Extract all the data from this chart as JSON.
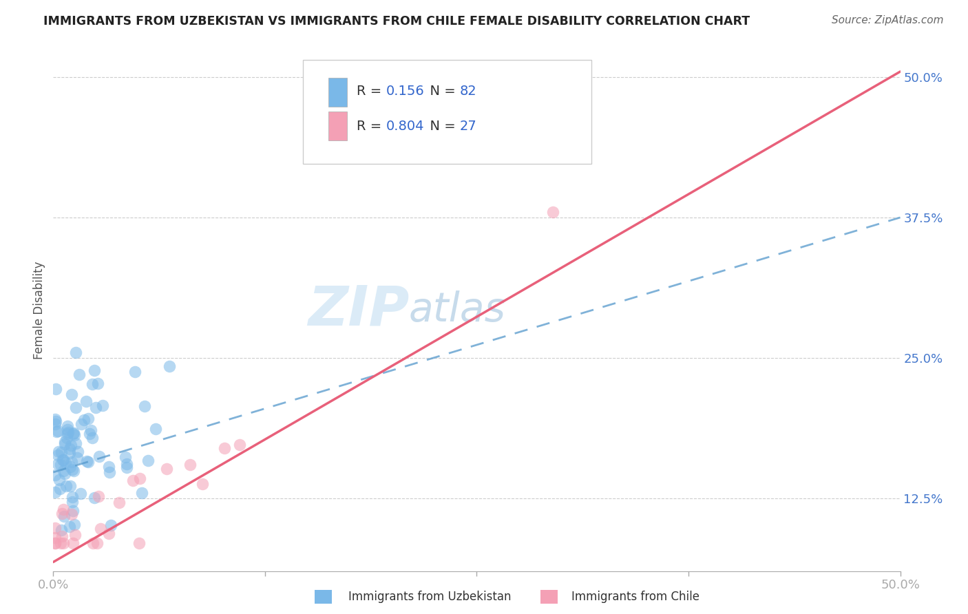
{
  "title": "IMMIGRANTS FROM UZBEKISTAN VS IMMIGRANTS FROM CHILE FEMALE DISABILITY CORRELATION CHART",
  "source": "Source: ZipAtlas.com",
  "xlabel_blue": "Immigrants from Uzbekistan",
  "xlabel_pink": "Immigrants from Chile",
  "ylabel": "Female Disability",
  "r_blue": 0.156,
  "n_blue": 82,
  "r_pink": 0.804,
  "n_pink": 27,
  "xlim": [
    0.0,
    0.5
  ],
  "ylim": [
    0.06,
    0.525
  ],
  "yticks": [
    0.125,
    0.25,
    0.375,
    0.5
  ],
  "ytick_labels": [
    "12.5%",
    "25.0%",
    "37.5%",
    "50.0%"
  ],
  "xtick_labels": [
    "0.0%",
    "50.0%"
  ],
  "xtick_vals": [
    0.0,
    0.5
  ],
  "watermark_zip": "ZIP",
  "watermark_atlas": "atlas",
  "color_blue": "#7ab8e8",
  "color_pink": "#f4a0b5",
  "trend_blue_color": "#5599cc",
  "trend_pink_color": "#e8607a",
  "legend_r_color": "#333333",
  "legend_n_color": "#3366cc",
  "title_fontsize": 12.5,
  "source_fontsize": 11,
  "tick_fontsize": 13,
  "legend_fontsize": 14,
  "ylabel_fontsize": 12,
  "blue_trend_y0": 0.148,
  "blue_trend_y1": 0.375,
  "pink_trend_y0": 0.068,
  "pink_trend_y1": 0.505
}
